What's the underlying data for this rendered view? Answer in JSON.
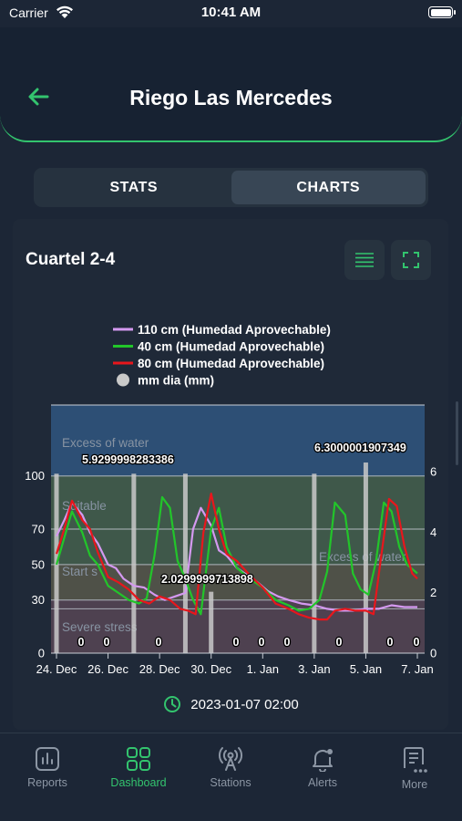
{
  "status_bar": {
    "carrier": "Carrier",
    "time": "10:41 AM"
  },
  "header": {
    "title": "Riego Las Mercedes"
  },
  "segmented": {
    "stats_label": "STATS",
    "charts_label": "CHARTS",
    "selected": "charts"
  },
  "card": {
    "title": "Cuartel 2-4"
  },
  "colors": {
    "accent": "#33c46e",
    "series_110": "#d499f0",
    "series_40": "#22c52a",
    "series_80": "#e8161c",
    "bars": "#c9c9c9"
  },
  "chart_data": {
    "type": "line",
    "legend": [
      {
        "name": "110 cm (Humedad Aprovechable)",
        "color": "#d499f0"
      },
      {
        "name": "40 cm (Humedad Aprovechable)",
        "color": "#22c52a"
      },
      {
        "name": "80 cm (Humedad Aprovechable)",
        "color": "#e8161c"
      },
      {
        "name": "mm dia (mm)",
        "color": "#c9c9c9"
      }
    ],
    "x_ticks": [
      "24. Dec",
      "26. Dec",
      "28. Dec",
      "30. Dec",
      "1. Jan",
      "3. Jan",
      "5. Jan",
      "7. Jan"
    ],
    "y_left_ticks": [
      0,
      30,
      50,
      70,
      100
    ],
    "y_right_ticks": [
      0,
      2,
      4,
      6
    ],
    "x_range": [
      0,
      14
    ],
    "y_left_range": [
      0,
      140
    ],
    "y_right_range": [
      0,
      8.2
    ],
    "bands": [
      {
        "label": "Excess of water",
        "from": 100,
        "to": 140,
        "color": "#2d4f75"
      },
      {
        "label": "Suitable",
        "from": 50,
        "to": 100,
        "color": "#3f584a"
      },
      {
        "label": "Start s",
        "from": 30,
        "to": 50,
        "color": "#4f5148"
      },
      {
        "label": "Severe stress",
        "from": 0,
        "to": 30,
        "color": "#4e4150"
      }
    ],
    "band_label_2": "Excess of water",
    "reference_lines": [
      100,
      70,
      50,
      30,
      25
    ],
    "series": [
      {
        "name": "110 cm (Humedad Aprovechable)",
        "x": [
          0,
          0.3,
          0.6,
          1.0,
          1.3,
          1.6,
          2.0,
          2.3,
          2.6,
          3.0,
          3.4,
          3.8,
          4.2,
          4.6,
          5.0,
          5.3,
          5.6,
          6.0,
          6.3,
          6.6,
          7.0,
          7.4,
          7.8,
          8.2,
          8.6,
          9.0,
          9.5,
          10.0,
          10.5,
          11.0,
          11.5,
          12.0,
          12.5,
          13.0,
          13.5,
          14.0
        ],
        "y": [
          66,
          75,
          85,
          78,
          68,
          62,
          50,
          48,
          42,
          38,
          37,
          33,
          30,
          32,
          34,
          70,
          82,
          72,
          58,
          55,
          48,
          44,
          40,
          35,
          32,
          30,
          28,
          27,
          25,
          24,
          24,
          25,
          25,
          27,
          26,
          26
        ]
      },
      {
        "name": "40 cm (Humedad Aprovechable)",
        "x": [
          0,
          0.3,
          0.6,
          1.0,
          1.3,
          1.6,
          2.0,
          2.4,
          2.8,
          3.2,
          3.5,
          3.8,
          4.1,
          4.4,
          4.7,
          5.0,
          5.3,
          5.6,
          6.0,
          6.3,
          6.6,
          7.0,
          7.5,
          8.0,
          8.5,
          9.0,
          9.4,
          9.8,
          10.2,
          10.5,
          10.8,
          11.2,
          11.5,
          11.8,
          12.1,
          12.4,
          12.7,
          13.0,
          13.3,
          13.6,
          14.0
        ],
        "y": [
          50,
          65,
          80,
          68,
          55,
          50,
          38,
          34,
          30,
          28,
          31,
          55,
          88,
          82,
          52,
          42,
          30,
          22,
          70,
          82,
          60,
          48,
          42,
          37,
          30,
          27,
          24,
          25,
          30,
          46,
          85,
          78,
          45,
          36,
          33,
          52,
          85,
          80,
          60,
          50,
          45
        ]
      },
      {
        "name": "80 cm (Humedad Aprovechable)",
        "x": [
          0,
          0.3,
          0.6,
          1.0,
          1.3,
          1.6,
          2.0,
          2.4,
          2.8,
          3.2,
          3.6,
          4.0,
          4.4,
          4.8,
          5.1,
          5.4,
          5.7,
          6.0,
          6.3,
          6.6,
          7.0,
          7.5,
          8.0,
          8.5,
          9.0,
          9.4,
          9.8,
          10.2,
          10.5,
          10.8,
          11.2,
          11.6,
          12.0,
          12.3,
          12.6,
          12.9,
          13.2,
          13.5,
          13.8,
          14.0
        ],
        "y": [
          56,
          70,
          86,
          75,
          70,
          57,
          43,
          40,
          36,
          30,
          28,
          32,
          30,
          25,
          24,
          22,
          68,
          90,
          70,
          56,
          52,
          44,
          37,
          28,
          25,
          22,
          20,
          19,
          19,
          24,
          25,
          24,
          24,
          22,
          55,
          87,
          83,
          60,
          45,
          42
        ]
      }
    ],
    "bars": {
      "name": "mm dia (mm)",
      "x": [
        0,
        3,
        5,
        6,
        10,
        12
      ],
      "y": [
        5.93,
        5.93,
        5.93,
        2.03,
        5.93,
        6.3
      ]
    },
    "data_labels": [
      "5.9299998283386",
      "2.0299999713898",
      "6.3000001907349"
    ],
    "zero_labels": [
      "0",
      "0",
      "0",
      "0",
      "0",
      "0",
      "0",
      "0",
      "0",
      "0"
    ]
  },
  "timestamp": "2023-01-07 02:00",
  "tabbar": {
    "items": [
      {
        "label": "Reports",
        "icon": "reports-icon"
      },
      {
        "label": "Dashboard",
        "icon": "dashboard-icon"
      },
      {
        "label": "Stations",
        "icon": "stations-icon"
      },
      {
        "label": "Alerts",
        "icon": "alerts-icon"
      },
      {
        "label": "More",
        "icon": "more-icon"
      }
    ],
    "active": 1
  }
}
